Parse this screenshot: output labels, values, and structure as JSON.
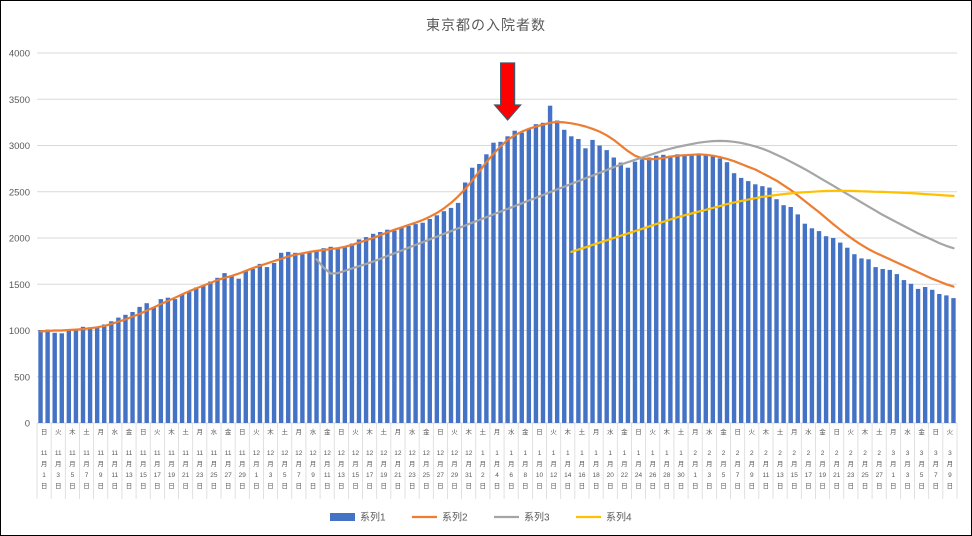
{
  "chart_data": {
    "type": "bar",
    "title": "東京都の入院者数",
    "ylim": [
      0,
      4000
    ],
    "ytick_step": 500,
    "grid": true,
    "legend_position": "bottom",
    "x_label_interval": 2,
    "x_weekdays": [
      "日",
      "火",
      "木",
      "土",
      "月",
      "水",
      "金",
      "日",
      "火",
      "木",
      "土",
      "月",
      "水",
      "金",
      "日",
      "火",
      "木",
      "土",
      "月",
      "水",
      "金",
      "日",
      "火",
      "木",
      "土",
      "月",
      "水",
      "金",
      "日",
      "火",
      "木",
      "土",
      "月",
      "水",
      "金",
      "日",
      "火",
      "木",
      "土",
      "月",
      "水",
      "金",
      "日",
      "火",
      "木",
      "土",
      "月",
      "水",
      "金",
      "日",
      "火",
      "木",
      "土",
      "月",
      "水",
      "金",
      "日",
      "火",
      "木",
      "土",
      "月",
      "水",
      "金",
      "日",
      "火"
    ],
    "x_labels": [
      "11月1日",
      "11月3日",
      "11月5日",
      "11月7日",
      "11月9日",
      "11月11日",
      "11月13日",
      "11月15日",
      "11月17日",
      "11月19日",
      "11月21日",
      "11月23日",
      "11月25日",
      "11月27日",
      "11月29日",
      "12月1日",
      "12月3日",
      "12月5日",
      "12月7日",
      "12月9日",
      "12月11日",
      "12月13日",
      "12月15日",
      "12月17日",
      "12月19日",
      "12月21日",
      "12月23日",
      "12月25日",
      "12月27日",
      "12月29日",
      "12月31日",
      "1月2日",
      "1月4日",
      "1月6日",
      "1月8日",
      "1月10日",
      "1月12日",
      "1月14日",
      "1月16日",
      "1月18日",
      "1月20日",
      "1月22日",
      "1月24日",
      "1月26日",
      "1月28日",
      "1月30日",
      "2月1日",
      "2月3日",
      "2月5日",
      "2月7日",
      "2月9日",
      "2月11日",
      "2月13日",
      "2月15日",
      "2月17日",
      "2月19日",
      "2月21日",
      "2月23日",
      "2月25日",
      "2月27日",
      "3月1日",
      "3月3日",
      "3月5日",
      "3月7日",
      "3月9日"
    ],
    "axis_text_color": "#595959",
    "gridline_color": "#D9D9D9",
    "series": [
      {
        "name": "系列1",
        "type": "bar",
        "color": "#4472C4",
        "start_index": 0,
        "values": [
          1005,
          1010,
          975,
          970,
          1000,
          1015,
          1040,
          1035,
          1030,
          1065,
          1100,
          1140,
          1170,
          1200,
          1255,
          1295,
          1250,
          1340,
          1355,
          1340,
          1390,
          1425,
          1465,
          1480,
          1530,
          1570,
          1620,
          1585,
          1560,
          1640,
          1665,
          1720,
          1685,
          1730,
          1840,
          1850,
          1840,
          1825,
          1845,
          1860,
          1890,
          1905,
          1880,
          1910,
          1940,
          1985,
          2010,
          2045,
          2065,
          2090,
          2080,
          2110,
          2130,
          2150,
          2165,
          2205,
          2245,
          2290,
          2325,
          2380,
          2600,
          2760,
          2800,
          2905,
          3030,
          3040,
          3100,
          3160,
          3140,
          3180,
          3230,
          3245,
          3430,
          3270,
          3170,
          3100,
          3070,
          2970,
          3060,
          3000,
          2950,
          2870,
          2815,
          2760,
          2825,
          2850,
          2870,
          2890,
          2900,
          2890,
          2905,
          2895,
          2905,
          2910,
          2900,
          2890,
          2860,
          2820,
          2700,
          2650,
          2615,
          2580,
          2560,
          2545,
          2420,
          2355,
          2335,
          2255,
          2155,
          2105,
          2075,
          2020,
          2000,
          1950,
          1895,
          1825,
          1780,
          1770,
          1685,
          1665,
          1655,
          1610,
          1545,
          1505,
          1450,
          1470,
          1440,
          1395,
          1380,
          1350
        ]
      },
      {
        "name": "系列2",
        "type": "line",
        "color": "#ED7D31",
        "start_index": 0,
        "values": [
          990,
          995,
          1000,
          1000,
          1005,
          1010,
          1015,
          1025,
          1035,
          1050,
          1070,
          1095,
          1120,
          1150,
          1180,
          1215,
          1250,
          1285,
          1320,
          1355,
          1390,
          1425,
          1455,
          1485,
          1515,
          1545,
          1570,
          1590,
          1615,
          1645,
          1675,
          1700,
          1725,
          1750,
          1775,
          1800,
          1820,
          1835,
          1850,
          1860,
          1870,
          1880,
          1890,
          1905,
          1925,
          1950,
          1975,
          2000,
          2030,
          2060,
          2090,
          2115,
          2140,
          2165,
          2195,
          2230,
          2270,
          2320,
          2380,
          2450,
          2530,
          2620,
          2720,
          2820,
          2910,
          2990,
          3060,
          3110,
          3150,
          3180,
          3205,
          3225,
          3245,
          3255,
          3250,
          3240,
          3225,
          3205,
          3180,
          3150,
          3110,
          3060,
          3000,
          2940,
          2890,
          2860,
          2850,
          2855,
          2865,
          2880,
          2890,
          2895,
          2900,
          2905,
          2900,
          2890,
          2875,
          2855,
          2830,
          2800,
          2770,
          2740,
          2700,
          2660,
          2620,
          2570,
          2520,
          2460,
          2400,
          2340,
          2280,
          2215,
          2150,
          2090,
          2030,
          1975,
          1925,
          1880,
          1840,
          1805,
          1770,
          1735,
          1700,
          1665,
          1630,
          1595,
          1560,
          1530,
          1500,
          1475
        ]
      },
      {
        "name": "系列3",
        "type": "line",
        "color": "#A5A5A5",
        "start_index": 39,
        "values": [
          1770,
          1680,
          1615,
          1620,
          1645,
          1670,
          1695,
          1720,
          1745,
          1775,
          1805,
          1835,
          1865,
          1895,
          1925,
          1955,
          1985,
          2015,
          2045,
          2075,
          2105,
          2135,
          2165,
          2195,
          2225,
          2255,
          2285,
          2315,
          2345,
          2375,
          2405,
          2435,
          2465,
          2495,
          2525,
          2555,
          2585,
          2615,
          2645,
          2675,
          2705,
          2735,
          2765,
          2795,
          2820,
          2845,
          2870,
          2895,
          2920,
          2945,
          2965,
          2985,
          3000,
          3015,
          3030,
          3040,
          3048,
          3050,
          3048,
          3040,
          3028,
          3010,
          2990,
          2965,
          2935,
          2900,
          2865,
          2825,
          2785,
          2745,
          2700,
          2655,
          2610,
          2565,
          2520,
          2475,
          2430,
          2385,
          2340,
          2295,
          2250,
          2210,
          2170,
          2130,
          2090,
          2050,
          2015,
          1980,
          1945,
          1915,
          1890
        ]
      },
      {
        "name": "系列4",
        "type": "line",
        "color": "#FFC000",
        "start_index": 75,
        "values": [
          1850,
          1875,
          1900,
          1925,
          1950,
          1975,
          2000,
          2025,
          2050,
          2075,
          2100,
          2125,
          2150,
          2175,
          2200,
          2225,
          2245,
          2265,
          2285,
          2305,
          2325,
          2345,
          2365,
          2385,
          2400,
          2415,
          2430,
          2445,
          2455,
          2465,
          2475,
          2482,
          2490,
          2495,
          2500,
          2505,
          2508,
          2510,
          2510,
          2510,
          2508,
          2505,
          2503,
          2500,
          2498,
          2495,
          2492,
          2488,
          2485,
          2480,
          2475,
          2470,
          2465,
          2460,
          2455
        ]
      }
    ],
    "annotation": {
      "type": "down-arrow",
      "color": "#FF0000",
      "outline": "#44546A",
      "data_index": 66
    }
  }
}
